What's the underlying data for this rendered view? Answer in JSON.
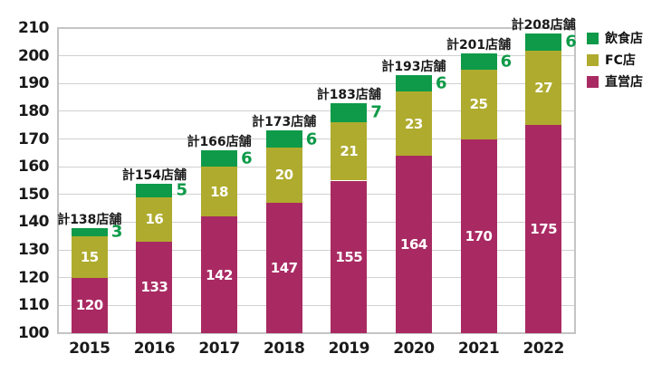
{
  "chart_data": {
    "type": "bar",
    "stacked": true,
    "title": "",
    "categories": [
      "2015",
      "2016",
      "2017",
      "2018",
      "2019",
      "2020",
      "2021",
      "2022"
    ],
    "series": [
      {
        "name": "直営店",
        "color": "#a92a62",
        "values": [
          120,
          133,
          142,
          147,
          155,
          164,
          170,
          175
        ],
        "value_label_position": "inside",
        "value_label_color": "#ffffff"
      },
      {
        "name": "FC店",
        "color": "#afab2e",
        "values": [
          15,
          16,
          18,
          20,
          21,
          23,
          25,
          27
        ],
        "value_label_position": "inside",
        "value_label_color": "#ffffff"
      },
      {
        "name": "飲食店",
        "color": "#0e9a49",
        "values": [
          3,
          5,
          6,
          6,
          7,
          6,
          6,
          6
        ],
        "value_label_position": "outside-right",
        "value_label_color": "#0e9a49"
      }
    ],
    "totals": [
      138,
      154,
      166,
      173,
      183,
      193,
      201,
      208
    ],
    "total_label_prefix": "計",
    "total_label_suffix": "店舗",
    "ylim": [
      100,
      210
    ],
    "ytick_step": 10,
    "yticks": [
      100,
      110,
      120,
      130,
      140,
      150,
      160,
      170,
      180,
      190,
      200,
      210
    ],
    "grid": true,
    "legend": {
      "position": "top-right",
      "entries": [
        "飲食店",
        "FC店",
        "直営店"
      ]
    },
    "colors": {
      "gridline": "#d0d0d0",
      "plot_border": "#c4c4c4",
      "axis_text": "#1a1a1a",
      "total_label_text": "#1a1a1a",
      "background": "#ffffff"
    }
  }
}
